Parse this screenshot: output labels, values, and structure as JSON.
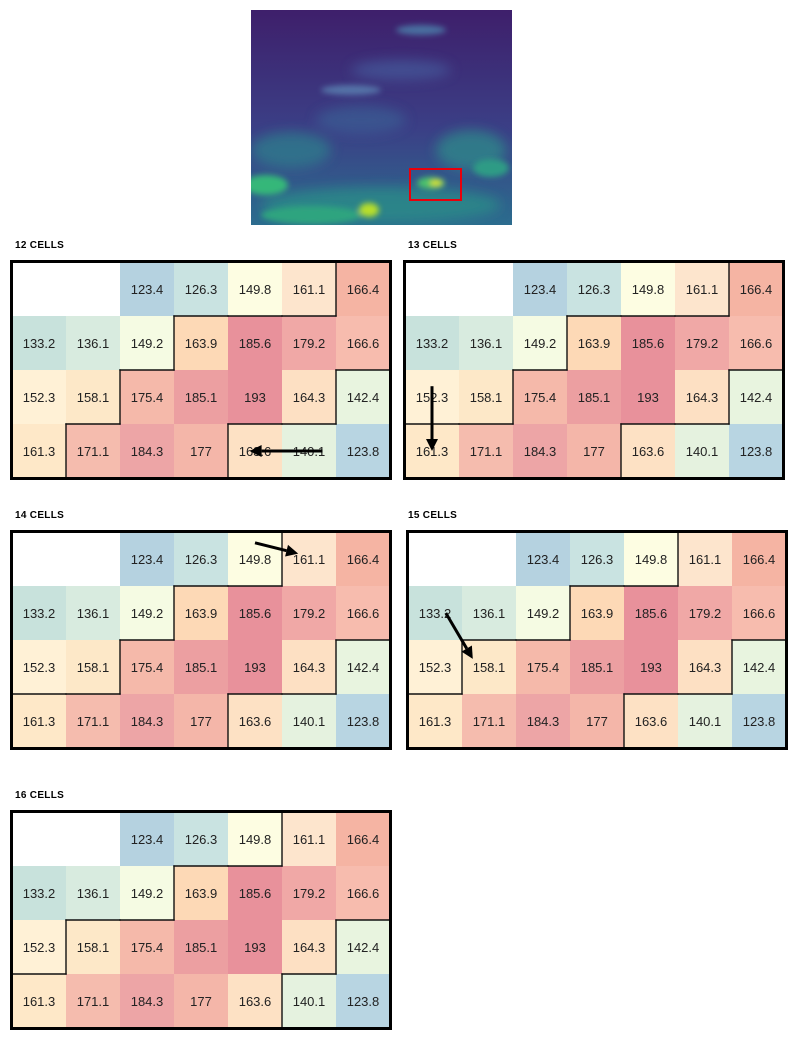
{
  "grid": {
    "rows": [
      [
        null,
        null,
        123.4,
        126.3,
        149.8,
        161.1,
        166.4
      ],
      [
        133.2,
        136.1,
        149.2,
        163.9,
        185.6,
        179.2,
        166.6
      ],
      [
        152.3,
        158.1,
        175.4,
        185.1,
        193,
        164.3,
        142.4
      ],
      [
        161.3,
        171.1,
        184.3,
        177,
        163.6,
        140.1,
        123.8
      ]
    ],
    "colors": [
      [
        null,
        null,
        "#b5d2e0",
        "#c9e3e1",
        "#fdfde2",
        "#fde5cd",
        "#f5b4a3"
      ],
      [
        "#c8e2dc",
        "#d8ebdf",
        "#f5fbe3",
        "#fdd9b6",
        "#e8919b",
        "#f0a8a6",
        "#f7bcae"
      ],
      [
        "#fff1d6",
        "#fde8c8",
        "#f5b9aa",
        "#ec9fa1",
        "#e8919b",
        "#fde0c3",
        "#e8f4df"
      ],
      [
        "#fee8c8",
        "#f5bcae",
        "#eda5a6",
        "#f4b6a9",
        "#fde1c4",
        "#e5f2df",
        "#b8d5e2"
      ]
    ]
  },
  "panels": [
    {
      "title": "12 CELLS",
      "region": [
        [
          0,
          6
        ],
        [
          1,
          3
        ],
        [
          1,
          4
        ],
        [
          1,
          5
        ],
        [
          1,
          6
        ],
        [
          2,
          2
        ],
        [
          2,
          3
        ],
        [
          2,
          4
        ],
        [
          2,
          5
        ],
        [
          3,
          1
        ],
        [
          3,
          2
        ],
        [
          3,
          3
        ]
      ],
      "arrow": {
        "from": [
          3,
          5.75
        ],
        "to": [
          3,
          4.4
        ]
      }
    },
    {
      "title": "13 CELLS",
      "region": [
        [
          0,
          6
        ],
        [
          1,
          3
        ],
        [
          1,
          4
        ],
        [
          1,
          5
        ],
        [
          1,
          6
        ],
        [
          2,
          2
        ],
        [
          2,
          3
        ],
        [
          2,
          4
        ],
        [
          2,
          5
        ],
        [
          3,
          0
        ],
        [
          3,
          1
        ],
        [
          3,
          2
        ],
        [
          3,
          3
        ]
      ],
      "arrow": {
        "from": [
          1.8,
          0.5
        ],
        "to": [
          3.0,
          0.5
        ]
      }
    },
    {
      "title": "14 CELLS",
      "region": [
        [
          0,
          5
        ],
        [
          0,
          6
        ],
        [
          1,
          3
        ],
        [
          1,
          4
        ],
        [
          1,
          5
        ],
        [
          1,
          6
        ],
        [
          2,
          2
        ],
        [
          2,
          3
        ],
        [
          2,
          4
        ],
        [
          2,
          5
        ],
        [
          3,
          0
        ],
        [
          3,
          1
        ],
        [
          3,
          2
        ],
        [
          3,
          3
        ]
      ],
      "arrow": {
        "from": [
          -0.3,
          4.5
        ],
        "to": [
          -0.1,
          5.3
        ]
      }
    },
    {
      "title": "15 CELLS",
      "region": [
        [
          0,
          5
        ],
        [
          0,
          6
        ],
        [
          1,
          3
        ],
        [
          1,
          4
        ],
        [
          1,
          5
        ],
        [
          1,
          6
        ],
        [
          2,
          1
        ],
        [
          2,
          2
        ],
        [
          2,
          3
        ],
        [
          2,
          4
        ],
        [
          2,
          5
        ],
        [
          3,
          0
        ],
        [
          3,
          1
        ],
        [
          3,
          2
        ],
        [
          3,
          3
        ]
      ],
      "arrow": {
        "from": [
          1.0,
          0.7
        ],
        "to": [
          1.85,
          1.2
        ]
      }
    },
    {
      "title": "16 CELLS",
      "region": [
        [
          0,
          5
        ],
        [
          0,
          6
        ],
        [
          1,
          3
        ],
        [
          1,
          4
        ],
        [
          1,
          5
        ],
        [
          1,
          6
        ],
        [
          2,
          1
        ],
        [
          2,
          2
        ],
        [
          2,
          3
        ],
        [
          2,
          4
        ],
        [
          2,
          5
        ],
        [
          3,
          0
        ],
        [
          3,
          1
        ],
        [
          3,
          2
        ],
        [
          3,
          3
        ],
        [
          3,
          4
        ]
      ],
      "arrow": null
    }
  ],
  "image": {
    "highlight_color": "#e8000b"
  }
}
